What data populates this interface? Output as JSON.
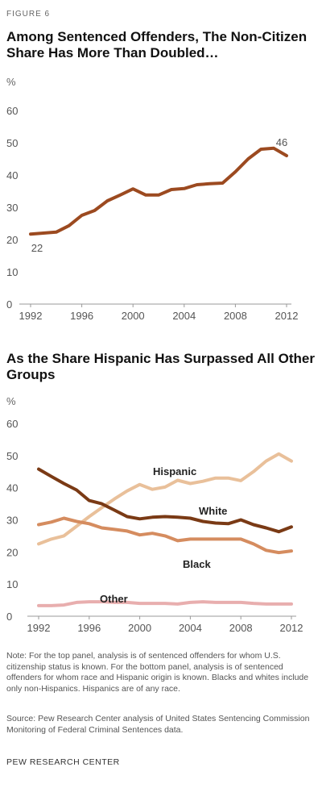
{
  "figure_label": "FIGURE 6",
  "note": "Note: For the top panel, analysis is of sentenced offenders for whom U.S. citizenship status is known. For the bottom panel, analysis is of sentenced offenders for whom race and Hispanic origin is known.  Blacks and whites include only non-Hispanics. Hispanics are of any race.",
  "source": "Source: Pew Research Center analysis of United States Sentencing Commission Monitoring of Federal Criminal Sentences data.",
  "organization": "PEW RESEARCH CENTER",
  "chart_data": [
    {
      "type": "line",
      "title": "Among Sentenced Offenders, The Non-Citizen Share Has More Than Doubled…",
      "ylabel": "%",
      "xlabel": "",
      "x": [
        1992,
        1993,
        1994,
        1995,
        1996,
        1997,
        1998,
        1999,
        2000,
        2001,
        2002,
        2003,
        2004,
        2005,
        2006,
        2007,
        2008,
        2009,
        2010,
        2011,
        2012
      ],
      "xticks": [
        "1992",
        "1996",
        "2000",
        "2004",
        "2008",
        "2012"
      ],
      "yticks": [
        "0",
        "10",
        "20",
        "30",
        "40",
        "50",
        "60"
      ],
      "ylim": [
        0,
        60
      ],
      "xlim": [
        1992,
        2012
      ],
      "grid": false,
      "series": [
        {
          "name": "",
          "color": "#9c4a20",
          "values": [
            21.7,
            22.0,
            22.3,
            24.3,
            27.5,
            29.0,
            32.0,
            33.8,
            35.7,
            33.8,
            33.8,
            35.5,
            35.8,
            37.0,
            37.3,
            37.5,
            41.0,
            45.0,
            48.0,
            48.3,
            46.0
          ]
        }
      ],
      "annotations": [
        {
          "text": "22",
          "x": 1992,
          "y": 21.7
        },
        {
          "text": "46",
          "x": 2012,
          "y": 46.0
        }
      ]
    },
    {
      "type": "line",
      "title": "As the Share Hispanic Has Surpassed All Other Groups",
      "ylabel": "%",
      "xlabel": "",
      "x": [
        1992,
        1993,
        1994,
        1995,
        1996,
        1997,
        1998,
        1999,
        2000,
        2001,
        2002,
        2003,
        2004,
        2005,
        2006,
        2007,
        2008,
        2009,
        2010,
        2011,
        2012
      ],
      "xticks": [
        "1992",
        "1996",
        "2000",
        "2004",
        "2008",
        "2012"
      ],
      "yticks": [
        "0",
        "10",
        "20",
        "30",
        "40",
        "50",
        "60"
      ],
      "ylim": [
        0,
        60
      ],
      "xlim": [
        1992,
        2012
      ],
      "grid": false,
      "legend": "inline labels",
      "series": [
        {
          "name": "Hispanic",
          "color": "#e9c09a",
          "values": [
            22.5,
            24.0,
            25.0,
            28.0,
            31.0,
            33.8,
            36.5,
            39.0,
            41.0,
            39.5,
            40.2,
            42.3,
            41.3,
            42.0,
            43.0,
            43.0,
            42.2,
            45.0,
            48.3,
            50.5,
            48.3
          ]
        },
        {
          "name": "White",
          "color": "#7a3a15",
          "values": [
            45.8,
            43.5,
            41.3,
            39.3,
            36.0,
            35.0,
            33.0,
            31.0,
            30.3,
            30.8,
            31.0,
            30.8,
            30.5,
            29.5,
            29.0,
            28.8,
            30.0,
            28.5,
            27.5,
            26.3,
            27.8
          ]
        },
        {
          "name": "Black",
          "color": "#d58c5f",
          "values": [
            28.5,
            29.3,
            30.5,
            29.5,
            28.8,
            27.5,
            27.0,
            26.5,
            25.3,
            25.8,
            25.0,
            23.5,
            24.0,
            24.0,
            24.0,
            24.0,
            24.0,
            22.5,
            20.5,
            19.8,
            20.3
          ]
        },
        {
          "name": "Other",
          "color": "#e8aeae",
          "values": [
            3.3,
            3.3,
            3.5,
            4.3,
            4.5,
            4.5,
            4.3,
            4.3,
            4.0,
            4.0,
            4.0,
            3.8,
            4.3,
            4.5,
            4.3,
            4.3,
            4.3,
            4.0,
            3.8,
            3.8,
            3.8
          ]
        }
      ]
    }
  ]
}
